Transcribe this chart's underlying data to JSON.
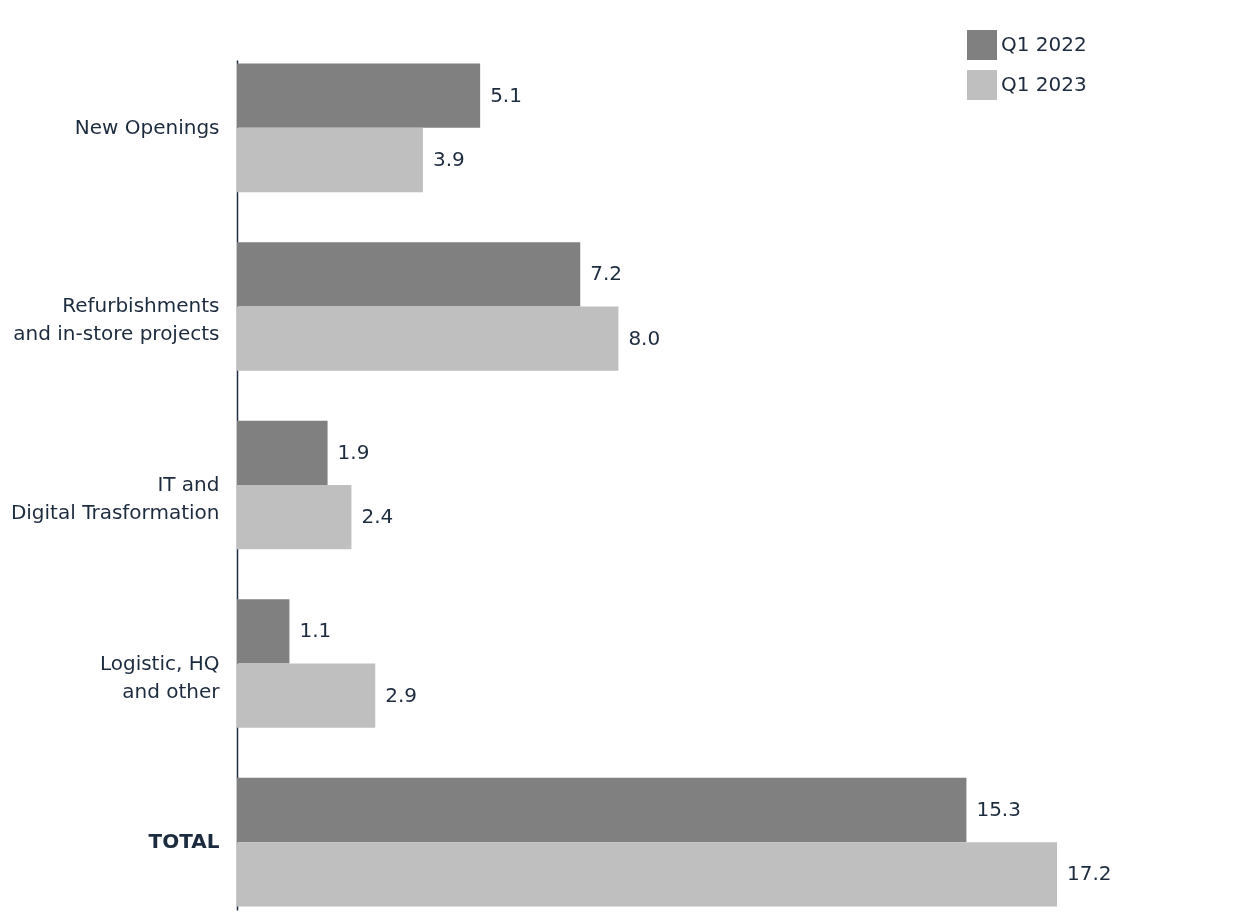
{
  "chart_data": {
    "type": "bar",
    "orientation": "horizontal",
    "categories": [
      "New Openings",
      "Refurbishments\nand in-store projects",
      "IT and \nDigital Trasformation",
      "Logistic, HQ\nand other",
      "TOTAL"
    ],
    "series": [
      {
        "name": "Q1 2022",
        "color": "#808080",
        "values": [
          5.1,
          7.2,
          1.9,
          1.1,
          15.3
        ],
        "value_labels": [
          "5.1",
          "7.2",
          "1.9",
          "1.1",
          "15.3"
        ]
      },
      {
        "name": "Q1 2023",
        "color": "#bfbfbf",
        "values": [
          3.9,
          8.0,
          2.4,
          2.9,
          17.2
        ],
        "value_labels": [
          "3.9",
          "8.0",
          "2.4",
          "2.9",
          "17.2"
        ]
      }
    ],
    "legend": "top right",
    "grid": false
  }
}
